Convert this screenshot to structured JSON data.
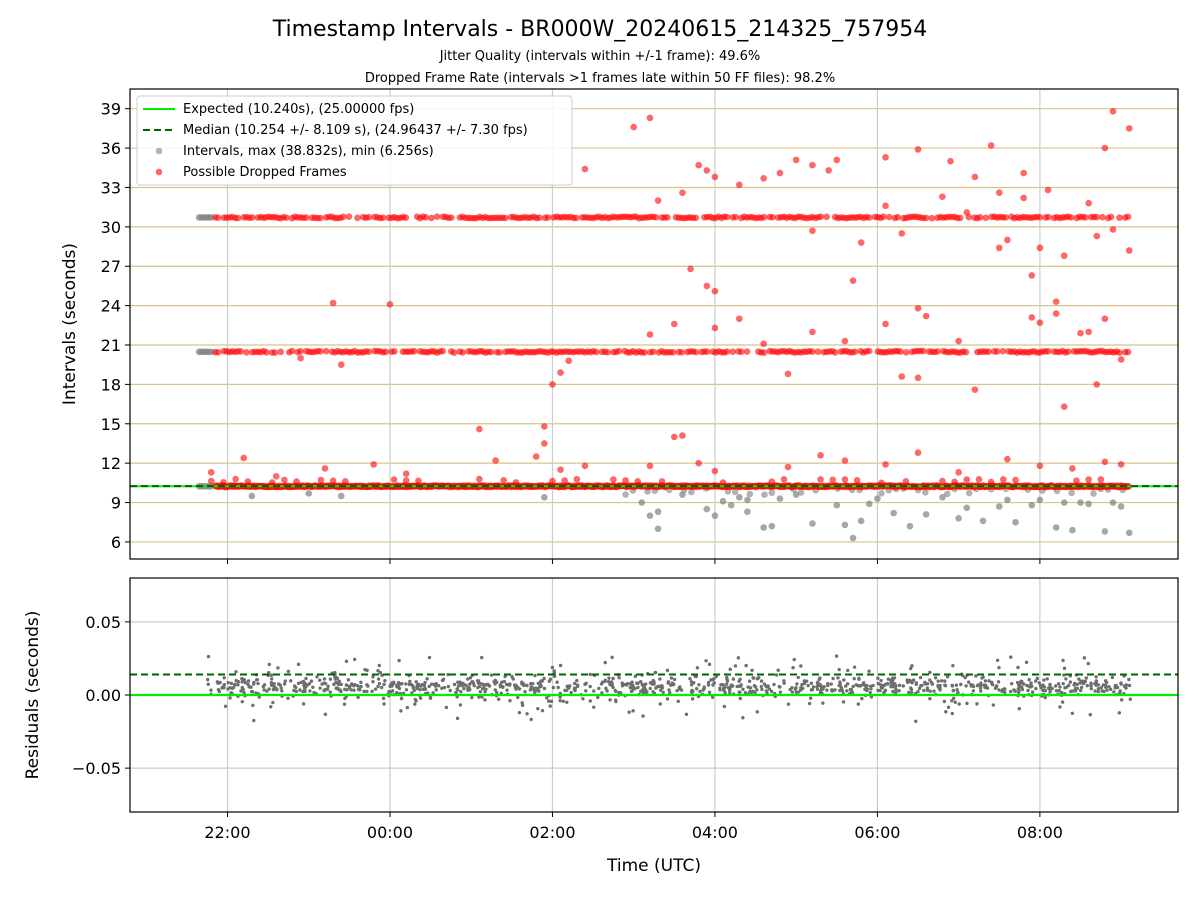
{
  "figure": {
    "title": "Timestamp Intervals - BR000W_20240615_214325_757954",
    "subtitle1": "Jitter Quality (intervals within +/-1 frame): 49.6%",
    "subtitle2": "Dropped Frame Rate (intervals >1 frames late within 50 FF files): 98.2%",
    "xlabel": "Time (UTC)",
    "xticks": [
      "22:00",
      "00:00",
      "02:00",
      "04:00",
      "06:00",
      "08:00"
    ]
  },
  "colors": {
    "expected": "#00ee00",
    "median": "#006400",
    "interval_points": "#808080",
    "dropped_points": "#ff0000",
    "hgrid_top": "#d8c48a",
    "vgrid": "#cccccc",
    "residual_points": "#6e6e6e"
  },
  "chart_data": [
    {
      "type": "scatter",
      "ylabel": "Intervals (seconds)",
      "ylim": [
        4.7,
        40.5
      ],
      "yticks": [
        6,
        9,
        12,
        15,
        18,
        21,
        24,
        27,
        30,
        33,
        36,
        39
      ],
      "xrange_hours": [
        20.8,
        33.7
      ],
      "grid": true,
      "legend_position": "top-left",
      "legend": [
        {
          "label": "Expected (10.240s), (25.00000 fps)",
          "style": "solid-line",
          "color": "#00ee00"
        },
        {
          "label": "Median (10.254 +/- 8.109 s), (24.96437 +/- 7.30 fps)",
          "style": "dashed-line",
          "color": "#006400"
        },
        {
          "label": "Intervals, max (38.832s), min (6.256s)",
          "style": "marker",
          "color": "#808080"
        },
        {
          "label": "Possible Dropped Frames",
          "style": "marker",
          "color": "#ff0000"
        }
      ],
      "expected_interval": 10.24,
      "median_interval": 10.254,
      "bands": [
        {
          "level": 10.24,
          "time_range": [
            21.7,
            33.1
          ]
        },
        {
          "level": 20.48,
          "time_range": [
            21.7,
            33.1
          ]
        },
        {
          "level": 30.72,
          "time_range": [
            21.7,
            33.1
          ]
        }
      ],
      "outliers": [
        [
          21.8,
          11.3
        ],
        [
          22.2,
          12.4
        ],
        [
          22.6,
          11.0
        ],
        [
          23.2,
          11.6
        ],
        [
          23.8,
          11.9
        ],
        [
          24.2,
          11.2
        ],
        [
          25.1,
          14.6
        ],
        [
          25.3,
          12.2
        ],
        [
          25.8,
          12.5
        ],
        [
          25.9,
          13.5
        ],
        [
          25.9,
          14.8
        ],
        [
          26.1,
          11.5
        ],
        [
          26.4,
          11.8
        ],
        [
          27.2,
          11.8
        ],
        [
          27.8,
          12.0
        ],
        [
          28.0,
          11.4
        ],
        [
          28.9,
          11.7
        ],
        [
          29.3,
          12.6
        ],
        [
          29.6,
          12.2
        ],
        [
          30.1,
          11.9
        ],
        [
          30.5,
          12.8
        ],
        [
          31.0,
          11.3
        ],
        [
          31.6,
          12.3
        ],
        [
          32.0,
          11.8
        ],
        [
          32.4,
          11.6
        ],
        [
          32.8,
          12.1
        ],
        [
          33.0,
          11.9
        ],
        [
          27.5,
          14.0
        ],
        [
          27.6,
          14.1
        ],
        [
          22.9,
          20.0
        ],
        [
          23.3,
          24.2
        ],
        [
          23.4,
          19.5
        ],
        [
          24.0,
          24.1
        ],
        [
          26.0,
          18.0
        ],
        [
          26.1,
          18.9
        ],
        [
          26.2,
          19.8
        ],
        [
          27.2,
          21.8
        ],
        [
          27.5,
          22.6
        ],
        [
          28.0,
          22.3
        ],
        [
          28.3,
          23.0
        ],
        [
          28.6,
          21.1
        ],
        [
          28.9,
          18.8
        ],
        [
          29.2,
          22.0
        ],
        [
          29.6,
          21.3
        ],
        [
          30.1,
          22.6
        ],
        [
          30.3,
          18.6
        ],
        [
          30.5,
          18.5
        ],
        [
          30.6,
          23.2
        ],
        [
          31.0,
          21.3
        ],
        [
          31.2,
          17.6
        ],
        [
          31.9,
          23.1
        ],
        [
          32.0,
          22.7
        ],
        [
          32.3,
          16.3
        ],
        [
          32.5,
          21.9
        ],
        [
          33.0,
          19.9
        ],
        [
          32.8,
          23.0
        ],
        [
          32.2,
          24.3
        ],
        [
          32.6,
          22.0
        ],
        [
          32.7,
          18.0
        ],
        [
          27.7,
          26.8
        ],
        [
          27.9,
          25.5
        ],
        [
          28.0,
          25.1
        ],
        [
          29.7,
          25.9
        ],
        [
          30.5,
          23.8
        ],
        [
          32.2,
          23.4
        ],
        [
          27.8,
          34.7
        ],
        [
          27.9,
          34.3
        ],
        [
          28.0,
          33.8
        ],
        [
          28.3,
          33.2
        ],
        [
          28.6,
          33.7
        ],
        [
          28.8,
          34.1
        ],
        [
          29.0,
          35.1
        ],
        [
          29.2,
          34.7
        ],
        [
          29.4,
          34.3
        ],
        [
          29.5,
          35.1
        ],
        [
          30.1,
          35.3
        ],
        [
          30.5,
          35.9
        ],
        [
          30.9,
          35.0
        ],
        [
          31.2,
          33.8
        ],
        [
          31.4,
          36.2
        ],
        [
          31.8,
          34.1
        ],
        [
          32.1,
          32.8
        ],
        [
          32.6,
          31.8
        ],
        [
          32.9,
          38.8
        ],
        [
          33.1,
          37.5
        ],
        [
          33.1,
          28.2
        ],
        [
          26.4,
          34.4
        ],
        [
          27.0,
          37.6
        ],
        [
          27.2,
          38.3
        ],
        [
          27.3,
          32.0
        ],
        [
          27.6,
          32.6
        ],
        [
          30.1,
          31.6
        ],
        [
          30.8,
          32.3
        ],
        [
          31.1,
          31.1
        ],
        [
          31.5,
          32.6
        ],
        [
          31.6,
          29.0
        ],
        [
          31.9,
          26.3
        ],
        [
          32.0,
          28.4
        ],
        [
          32.3,
          27.8
        ],
        [
          32.9,
          29.8
        ],
        [
          31.8,
          32.2
        ],
        [
          29.2,
          29.7
        ],
        [
          29.8,
          28.8
        ],
        [
          30.3,
          29.5
        ],
        [
          31.5,
          28.4
        ],
        [
          32.7,
          29.3
        ],
        [
          32.8,
          36.0
        ]
      ],
      "dips": [
        [
          27.1,
          9.0
        ],
        [
          27.2,
          8.0
        ],
        [
          27.3,
          7.0
        ],
        [
          27.6,
          9.6
        ],
        [
          27.9,
          8.5
        ],
        [
          28.0,
          8.0
        ],
        [
          28.1,
          9.1
        ],
        [
          28.2,
          8.8
        ],
        [
          28.3,
          9.4
        ],
        [
          28.4,
          9.2
        ],
        [
          28.6,
          7.1
        ],
        [
          28.7,
          7.2
        ],
        [
          28.8,
          9.3
        ],
        [
          29.0,
          9.6
        ],
        [
          29.2,
          7.4
        ],
        [
          29.5,
          8.8
        ],
        [
          29.6,
          7.3
        ],
        [
          29.7,
          6.3
        ],
        [
          29.8,
          7.6
        ],
        [
          30.0,
          9.3
        ],
        [
          30.2,
          8.2
        ],
        [
          30.4,
          7.2
        ],
        [
          30.6,
          8.1
        ],
        [
          30.8,
          9.4
        ],
        [
          31.0,
          7.8
        ],
        [
          31.1,
          8.6
        ],
        [
          31.3,
          7.6
        ],
        [
          31.5,
          8.7
        ],
        [
          31.6,
          9.2
        ],
        [
          31.7,
          7.5
        ],
        [
          31.9,
          8.8
        ],
        [
          32.0,
          9.2
        ],
        [
          32.2,
          7.1
        ],
        [
          32.3,
          9.0
        ],
        [
          32.4,
          6.9
        ],
        [
          32.6,
          8.9
        ],
        [
          32.8,
          6.8
        ],
        [
          32.9,
          9.0
        ],
        [
          33.0,
          8.7
        ],
        [
          33.1,
          6.7
        ],
        [
          32.5,
          9.0
        ],
        [
          22.3,
          9.5
        ],
        [
          23.0,
          9.7
        ],
        [
          23.4,
          9.5
        ],
        [
          25.9,
          9.4
        ],
        [
          27.3,
          8.3
        ],
        [
          28.4,
          8.3
        ],
        [
          29.9,
          8.9
        ]
      ]
    },
    {
      "type": "scatter",
      "ylabel": "Residuals (seconds)",
      "ylim": [
        -0.08,
        0.08
      ],
      "yticks": [
        "−0.05",
        "0.00",
        "0.05"
      ],
      "ytick_values": [
        -0.05,
        0,
        0.05
      ],
      "expected_level": 0.0,
      "median_level": 0.014,
      "grid": true,
      "note_points": "dense residual scatter between 21.7h and 33.1h, mostly within -0.05..0.05, clustered around 0.005"
    }
  ]
}
